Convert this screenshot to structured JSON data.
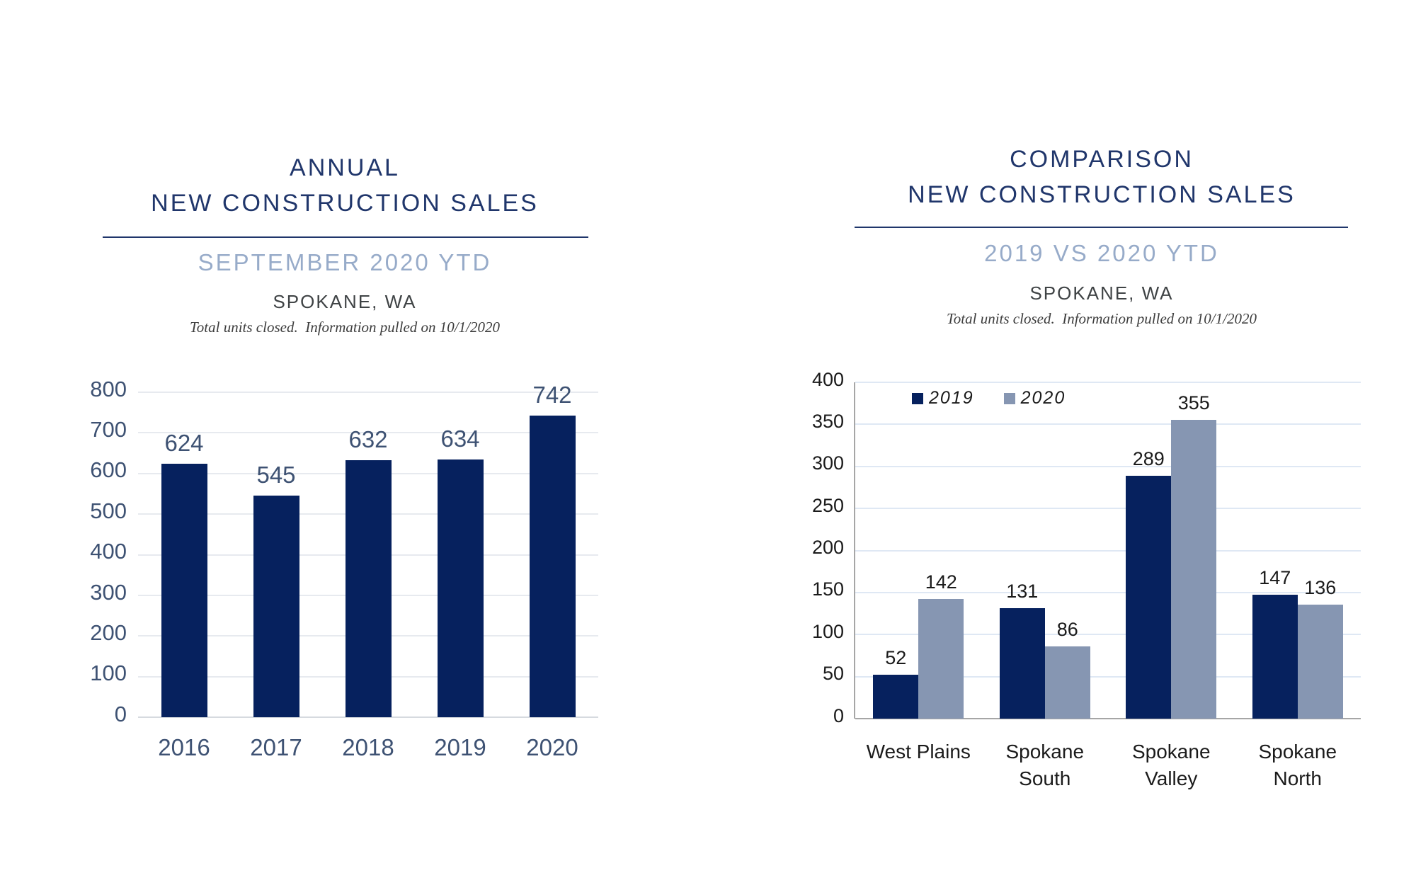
{
  "page_background": "#ffffff",
  "theme": {
    "title_color": "#20366b",
    "subtitle_color": "#97abc9",
    "location_color": "#3f4345",
    "note_color": "#3d3d3d",
    "axis_line_color": "#a6a6a6"
  },
  "chart_data": [
    {
      "id": "annual",
      "type": "bar",
      "title_lines": [
        "ANNUAL",
        "NEW CONSTRUCTION SALES"
      ],
      "subtitle": "SEPTEMBER 2020 YTD",
      "location": "SPOKANE, WA",
      "note": "Total units closed.  Information pulled on 10/1/2020",
      "categories": [
        "2016",
        "2017",
        "2018",
        "2019",
        "2020"
      ],
      "values": [
        624,
        545,
        632,
        634,
        742
      ],
      "ylim": [
        0,
        800
      ],
      "ytick_step": 100,
      "grid": true,
      "legend_position": "none",
      "bar_color": "#06215e",
      "gridline_color": "#e7eaef",
      "baseline_color": "#d6dadf",
      "axis_text_color": "#3e5273",
      "value_label_color": "#3e5273"
    },
    {
      "id": "comparison",
      "type": "bar",
      "title_lines": [
        "COMPARISON",
        "NEW CONSTRUCTION SALES"
      ],
      "subtitle": "2019 VS 2020 YTD",
      "location": "SPOKANE, WA",
      "note": "Total units closed.  Information pulled on 10/1/2020",
      "categories": [
        "West Plains",
        "Spokane\nSouth",
        "Spokane\nValley",
        "Spokane\nNorth"
      ],
      "series": [
        {
          "name": "2019",
          "color": "#06215e",
          "values": [
            52,
            131,
            289,
            147
          ]
        },
        {
          "name": "2020",
          "color": "#8696b2",
          "values": [
            142,
            86,
            355,
            136
          ]
        }
      ],
      "ylim": [
        0,
        400
      ],
      "ytick_step": 50,
      "grid": true,
      "legend_position": "top",
      "gridline_color": "#dfe8f4",
      "baseline_color": "#a6a6a6",
      "axis_line_color": "#a6a6a6",
      "axis_text_color": "#1b1b1b",
      "value_label_color": "#1b1b1b"
    }
  ]
}
